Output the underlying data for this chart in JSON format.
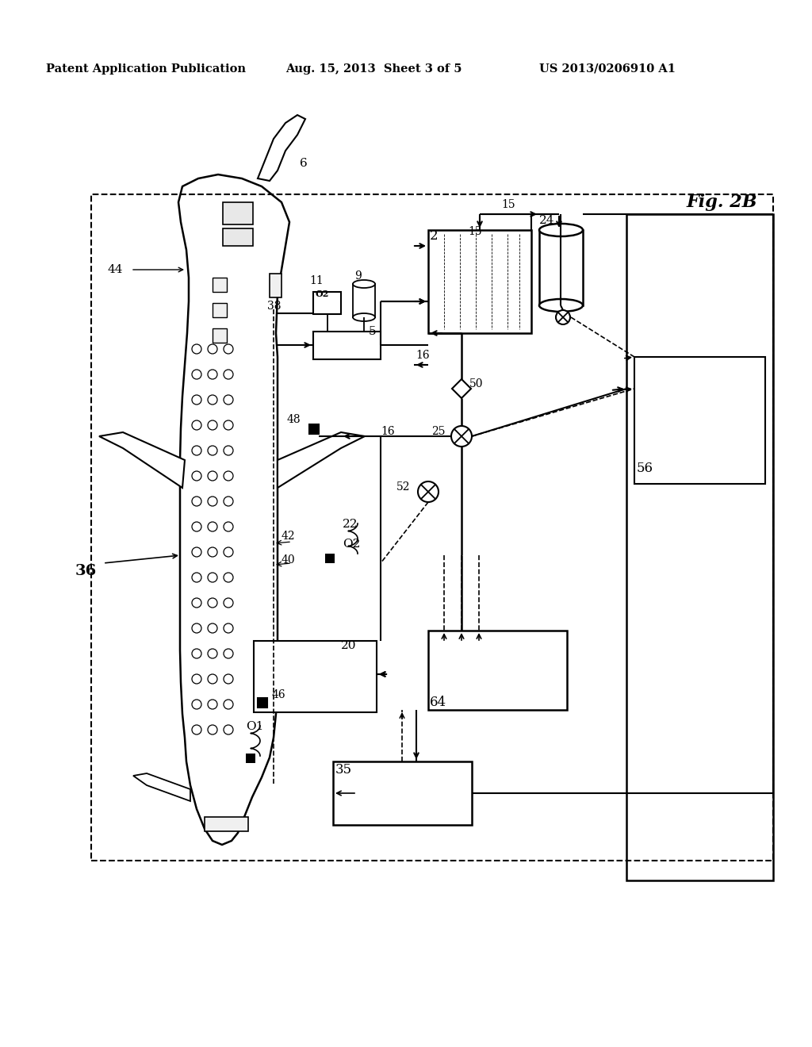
{
  "title_left": "Patent Application Publication",
  "title_mid": "Aug. 15, 2013  Sheet 3 of 5",
  "title_right": "US 2013/0206910 A1",
  "fig_label": "Fig. 2B",
  "background": "#ffffff"
}
